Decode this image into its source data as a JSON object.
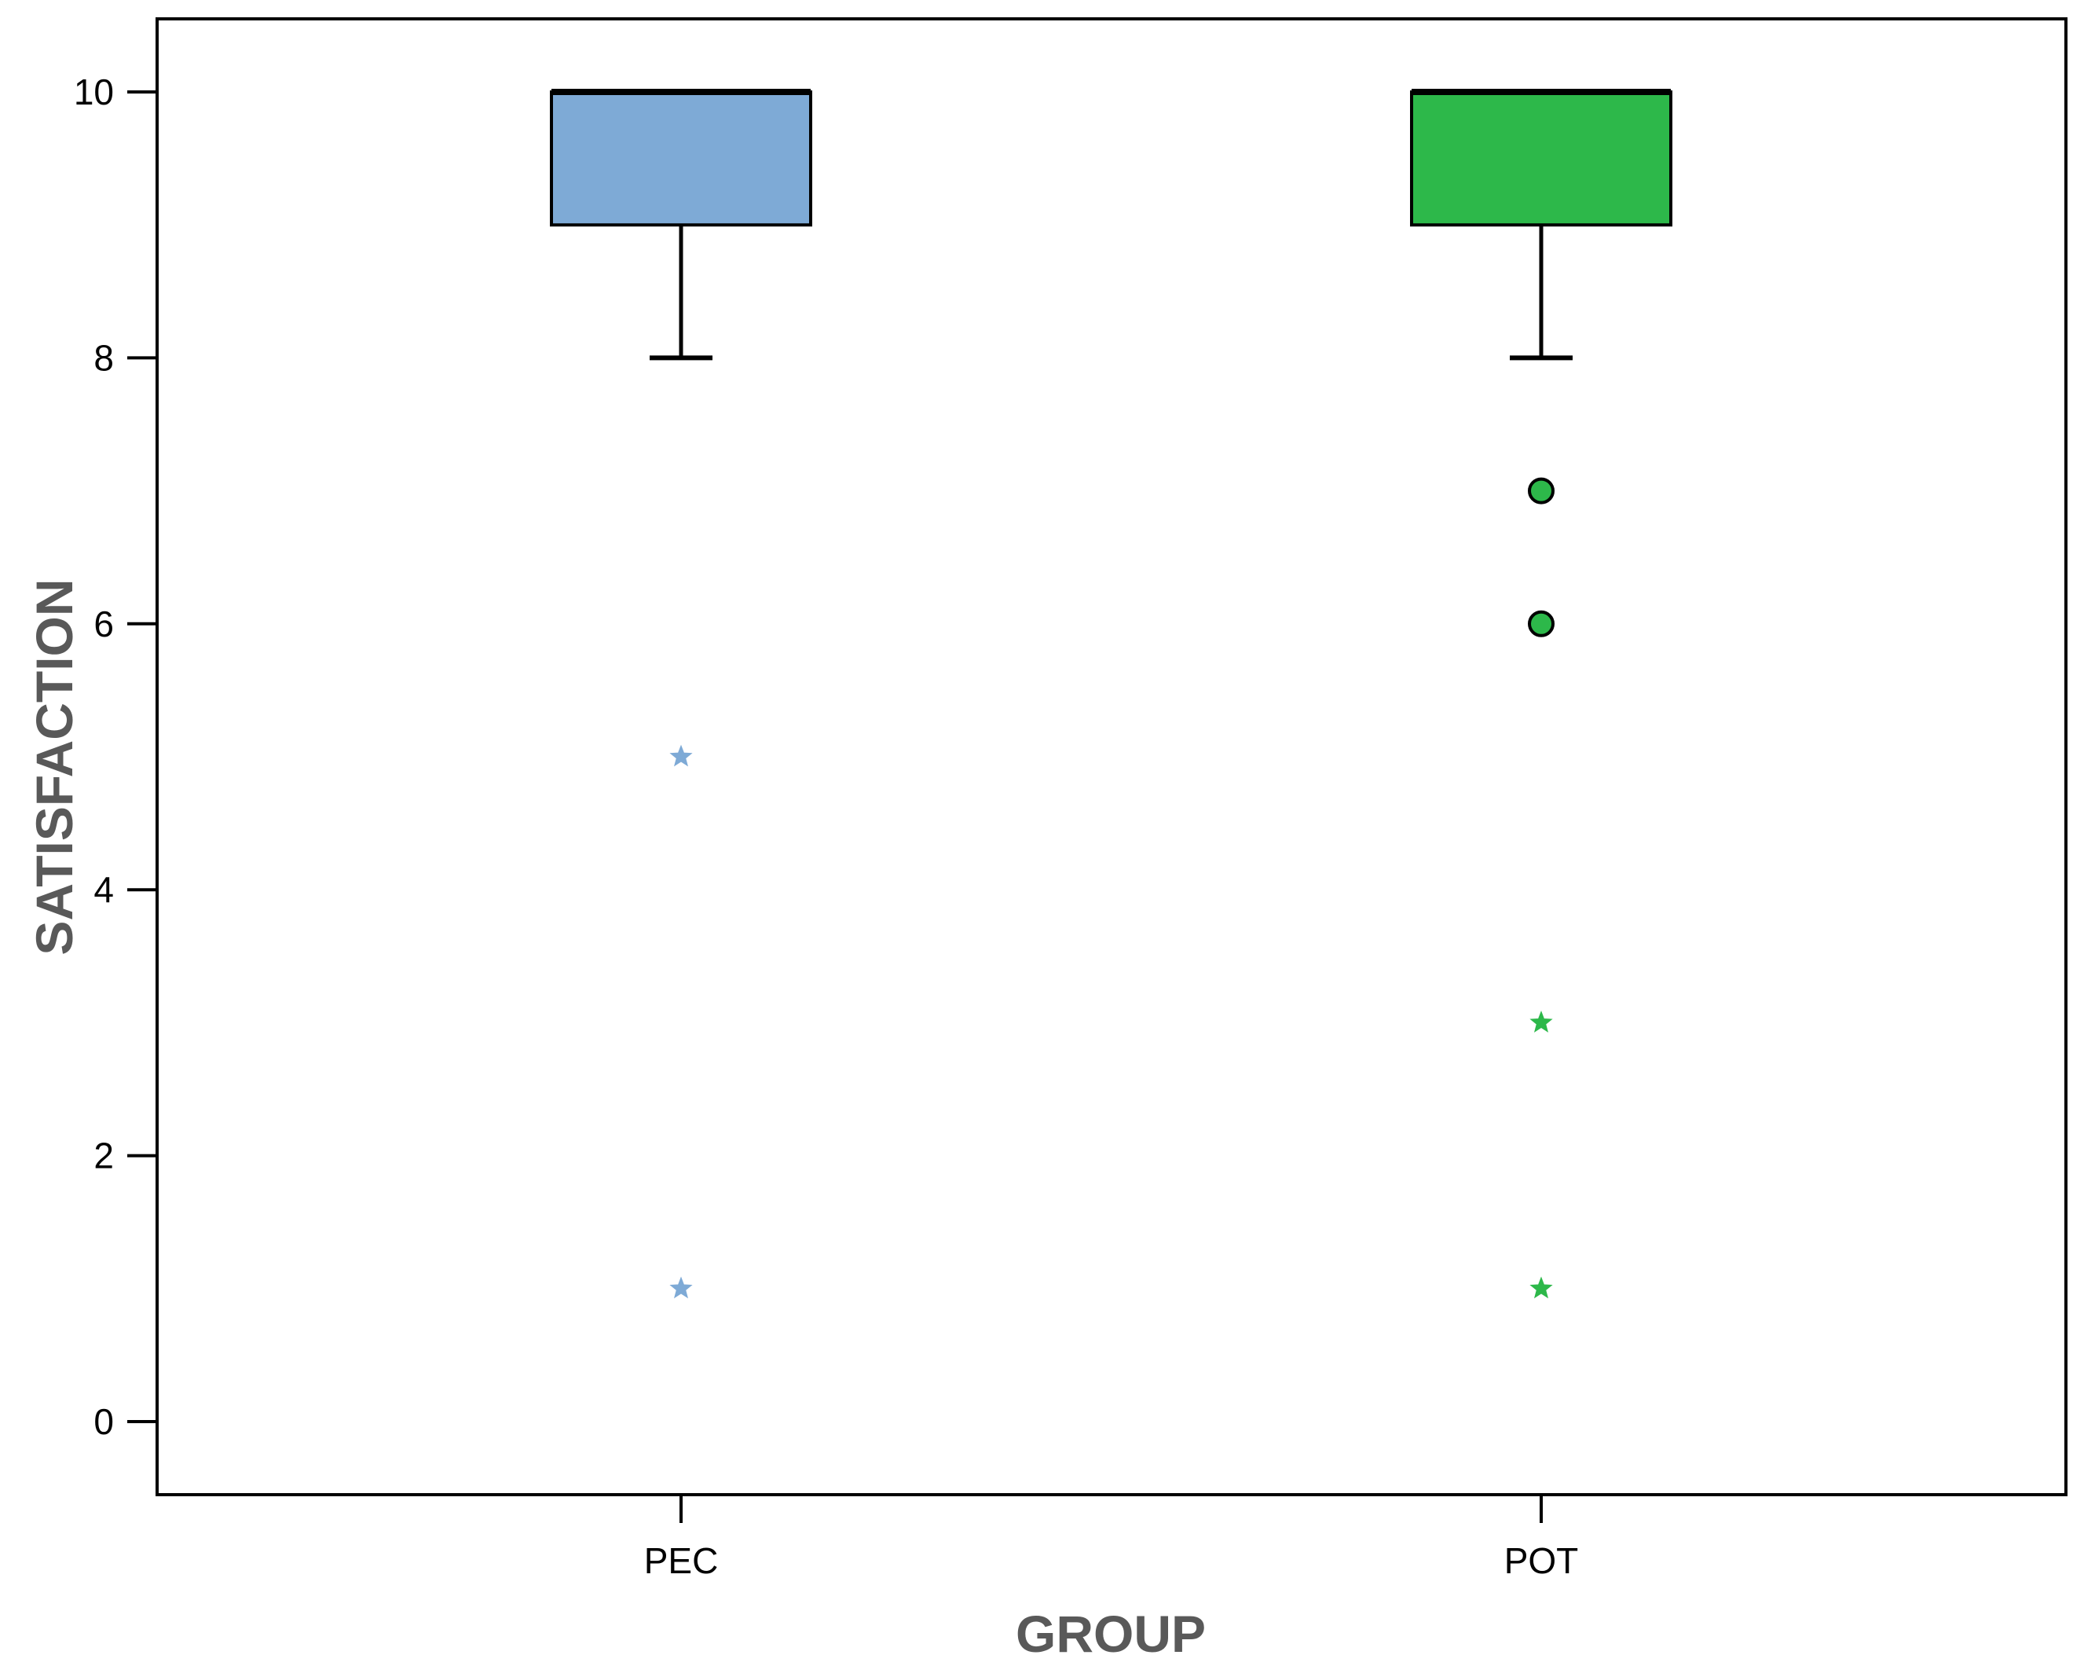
{
  "chart_data": {
    "type": "boxplot",
    "title": "",
    "xlabel": "GROUP",
    "ylabel": "SATISFACTION",
    "ylim": [
      -0.55,
      10.55
    ],
    "y_ticks": [
      "0",
      "2",
      "4",
      "6",
      "8",
      "10"
    ],
    "grid": false,
    "legend": "none",
    "categories": [
      "PEC",
      "POT"
    ],
    "series": [
      {
        "category": "PEC",
        "color": "#7eaad6",
        "whisker_low": 8,
        "q1": 9,
        "median": 10,
        "q3": 10,
        "whisker_high": 10,
        "outliers": [],
        "extremes": [
          5,
          1
        ]
      },
      {
        "category": "POT",
        "color": "#2db84a",
        "whisker_low": 8,
        "q1": 9,
        "median": 10,
        "q3": 10,
        "whisker_high": 10,
        "outliers": [
          7,
          6
        ],
        "extremes": [
          3,
          1
        ]
      }
    ]
  }
}
